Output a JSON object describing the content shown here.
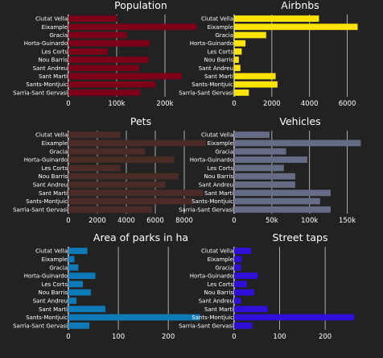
{
  "chart_data": [
    {
      "type": "bar",
      "title": "Population",
      "categories": [
        "Ciutat Vella",
        "Eixample",
        "Gracia",
        "Horta-Guinardo",
        "Les Corts",
        "Nou Barris",
        "Sant Andreu",
        "Sant Marti",
        "Sants-Montjuic",
        "Sarria-Sant Gervasi"
      ],
      "values": [
        101000,
        266000,
        121000,
        168000,
        82000,
        166000,
        147000,
        235000,
        181000,
        149000
      ],
      "xlim": [
        0,
        300000
      ],
      "ticks": [
        0,
        100000,
        200000
      ],
      "tick_labels": [
        "0",
        "100k",
        "200k"
      ],
      "color": "#7b0018"
    },
    {
      "type": "bar",
      "title": "Airbnbs",
      "categories": [
        "Ciutat Vella",
        "Eixample",
        "Gracia",
        "Horta-Guinardo",
        "Les Corts",
        "Nou Barris",
        "Sant Andreu",
        "Sant Marti",
        "Sants-Montjuic",
        "Sarria-Sant Gervasi"
      ],
      "values": [
        4500,
        6550,
        1700,
        600,
        400,
        250,
        330,
        2200,
        2300,
        780
      ],
      "xlim": [
        0,
        7000
      ],
      "ticks": [
        0,
        2000,
        4000,
        6000
      ],
      "tick_labels": [
        "0",
        "2000",
        "4000",
        "6000"
      ],
      "color": "#ffe400"
    },
    {
      "type": "bar",
      "title": "Pets",
      "categories": [
        "Ciutat Vella",
        "Eixample",
        "Gracia",
        "Horta-Guinardo",
        "Les Corts",
        "Nou Barris",
        "Sant Andreu",
        "Sant Marti",
        "Sants-Montjuic",
        "Sarria-Sant Gervasi"
      ],
      "values": [
        3600,
        9500,
        5300,
        7300,
        3600,
        7600,
        6700,
        9300,
        8600,
        5800
      ],
      "xlim": [
        0,
        10000
      ],
      "ticks": [
        0,
        2000,
        4000,
        6000,
        8000
      ],
      "tick_labels": [
        "0",
        "2000",
        "4000",
        "6000",
        "8000"
      ],
      "color": "#4a2b25"
    },
    {
      "type": "bar",
      "title": "Vehicles",
      "categories": [
        "Ciutat Vella",
        "Eixample",
        "Gracia",
        "Horta-Guinardo",
        "Les Corts",
        "Nou Barris",
        "Sant Andreu",
        "Sant Marti",
        "Sants-Montjuic",
        "Sarria-Sant Gervasi"
      ],
      "values": [
        47000,
        168000,
        69000,
        97000,
        66000,
        81000,
        81000,
        128000,
        114000,
        128000
      ],
      "xlim": [
        0,
        175000
      ],
      "ticks": [
        0,
        50000,
        100000,
        150000
      ],
      "tick_labels": [
        "0",
        "50k",
        "100k",
        "150k"
      ],
      "color": "#666c85"
    },
    {
      "type": "bar",
      "title": "Area of parks in ha",
      "categories": [
        "Ciutat Vella",
        "Eixample",
        "Gracia",
        "Horta-Guinardo",
        "Les Corts",
        "Nou Barris",
        "Sant Andreu",
        "Sant Marti",
        "Sants-Montjuic",
        "Sarria-Sant Gervasi"
      ],
      "values": [
        38,
        12,
        20,
        54,
        29,
        45,
        16,
        74,
        264,
        42
      ],
      "xlim": [
        0,
        290
      ],
      "ticks": [
        0,
        100,
        200
      ],
      "tick_labels": [
        "0",
        "100",
        "200"
      ],
      "color": "#0e7ab8"
    },
    {
      "type": "bar",
      "title": "Street taps",
      "categories": [
        "Ciutat Vella",
        "Eixample",
        "Gracia",
        "Horta-Guinardo",
        "Les Corts",
        "Nou Barris",
        "Sant Andreu",
        "Sant Marti",
        "Sants-Montjuic",
        "Sarria-Sant Gervasi"
      ],
      "values": [
        37,
        17,
        15,
        52,
        28,
        44,
        15,
        74,
        264,
        40
      ],
      "xlim": [
        0,
        290
      ],
      "ticks": [
        0,
        100,
        200
      ],
      "tick_labels": [
        "0",
        "100",
        "200"
      ],
      "color": "#2f10d8"
    }
  ]
}
